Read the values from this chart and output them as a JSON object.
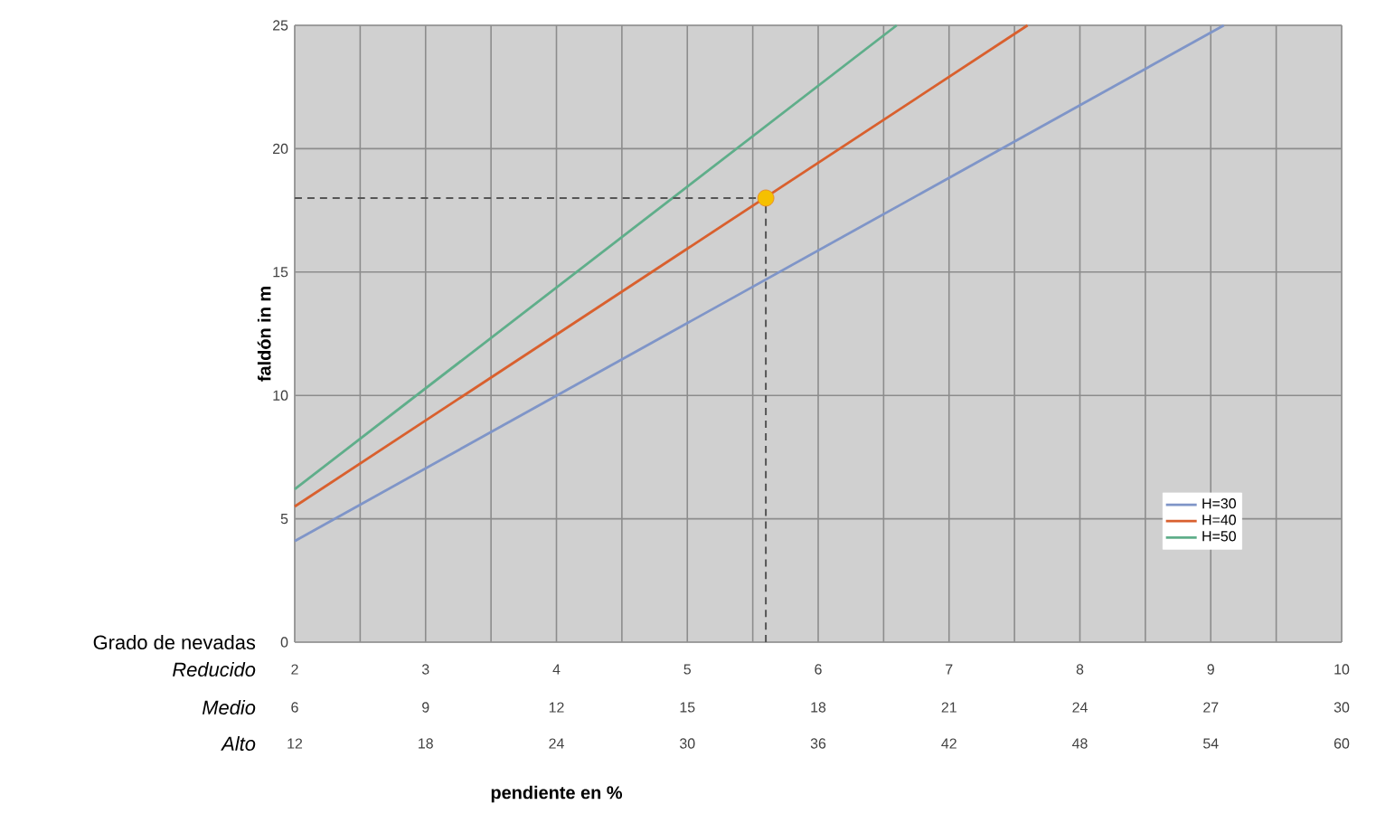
{
  "chart_data": {
    "type": "line",
    "xlabel": "pendiente en %",
    "ylabel": "faldón in m",
    "annotations": [
      "Grado de nevadas",
      "Reducido",
      "Medio",
      "Alto",
      "12",
      "18",
      "24",
      "30",
      "36",
      "42",
      "48",
      "54",
      "60"
    ],
    "xlim": [
      2,
      10
    ],
    "ylim": [
      0,
      25
    ],
    "xticks": [
      2,
      {
        "value": 2.5,
        "label": null
      },
      3,
      {
        "value": 3.5,
        "label": null
      },
      4,
      {
        "value": 4.5,
        "label": null
      },
      5,
      {
        "value": 5.5,
        "label": null
      },
      6,
      {
        "value": 6.5,
        "label": null
      },
      7,
      {
        "value": 7.5,
        "label": null
      },
      8,
      {
        "value": 8.5,
        "label": null
      },
      9,
      {
        "value": 9.5,
        "label": null
      },
      10
    ],
    "x2lim": [
      6,
      30
    ],
    "x2ticks": [
      6,
      9,
      12,
      15,
      18,
      21,
      24,
      27,
      30
    ],
    "yticks": [
      0,
      5,
      10,
      15,
      20,
      25
    ],
    "grid": true,
    "legend": "bottom right",
    "series": [
      {
        "name": "H=30",
        "color": "#7f95c8",
        "x": [
          2,
          9.1
        ],
        "values": [
          4.1,
          25
        ]
      },
      {
        "name": "H=40",
        "color": "#d9602e",
        "x": [
          2,
          7.6
        ],
        "values": [
          5.5,
          25
        ]
      },
      {
        "name": "H=50",
        "color": "#5fae8a",
        "x": [
          2,
          6.6
        ],
        "values": [
          6.2,
          25
        ]
      },
      {
        "type": "line",
        "line_style": "dashed",
        "color": "#555555",
        "x": [
          2,
          5.6,
          5.6
        ],
        "values": [
          18,
          18,
          0
        ]
      },
      {
        "type": "scatter",
        "marker": "circle",
        "color": "#f5c000",
        "x": [
          5.6
        ],
        "values": [
          18
        ]
      }
    ]
  }
}
